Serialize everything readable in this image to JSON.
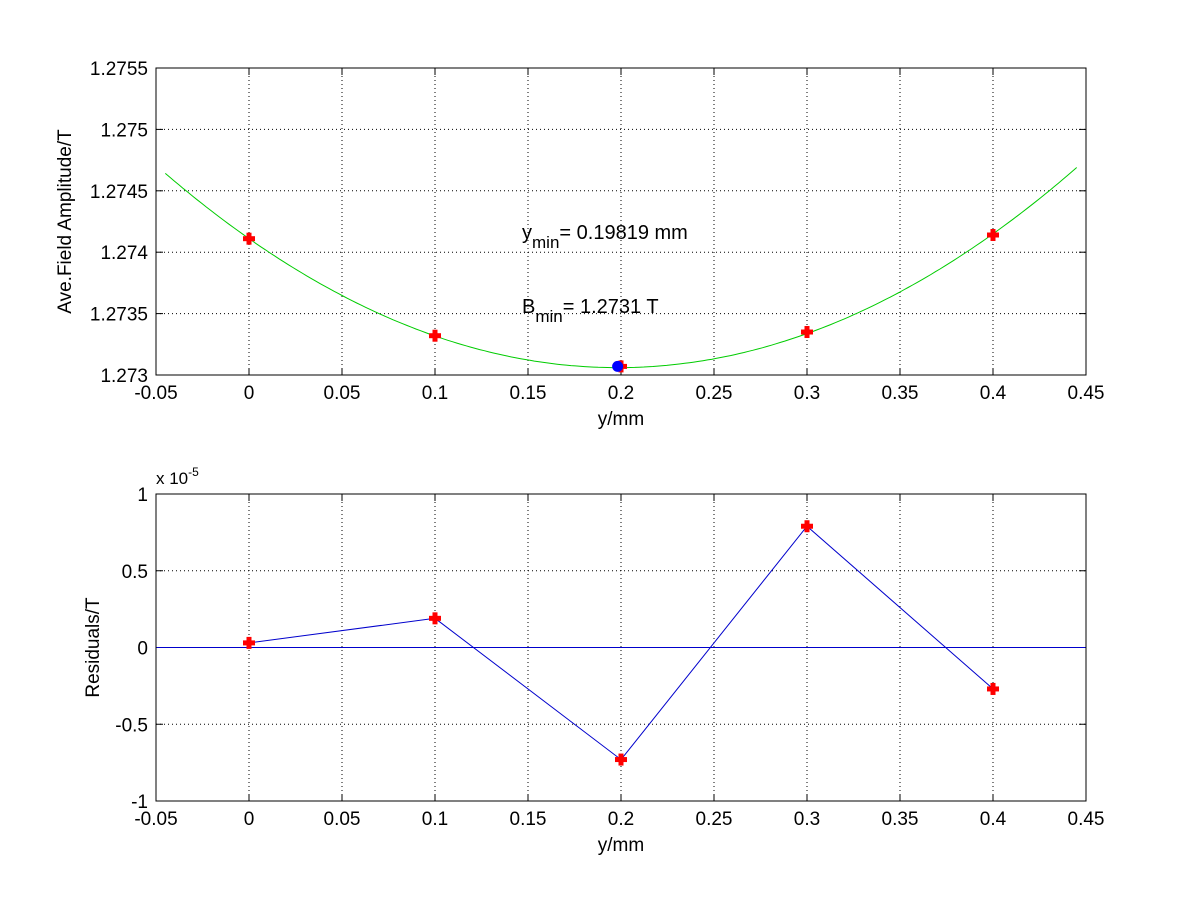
{
  "chart_data": [
    {
      "type": "line",
      "title": "",
      "xlabel": "y/mm",
      "ylabel": "Ave.Field Amplitude/T",
      "xlim": [
        -0.05,
        0.45
      ],
      "ylim": [
        1.273,
        1.2755
      ],
      "xticks": [
        "-0.05",
        "0",
        "0.05",
        "0.1",
        "0.15",
        "0.2",
        "0.25",
        "0.3",
        "0.35",
        "0.4",
        "0.45"
      ],
      "yticks": [
        "1.273",
        "1.2735",
        "1.274",
        "1.2745",
        "1.275",
        "1.2755"
      ],
      "grid": true,
      "series": [
        {
          "name": "measured",
          "style": "red plus markers",
          "color": "#ff0000",
          "x": [
            0,
            0.1,
            0.2,
            0.3,
            0.4
          ],
          "y": [
            1.27411,
            1.27332,
            1.27307,
            1.27335,
            1.27414
          ]
        },
        {
          "name": "quadratic fit",
          "style": "line",
          "color": "#00cc00",
          "vertex_x": 0.19819,
          "vertex_y": 1.27306,
          "curvature": 0.02675,
          "x_range": [
            -0.045,
            0.445
          ]
        },
        {
          "name": "minimum",
          "style": "blue marker",
          "color": "#0000ff",
          "x": [
            0.19819
          ],
          "y": [
            1.27307
          ]
        }
      ],
      "annotations": [
        {
          "main": "y",
          "sub": "min",
          "rest": "= 0.19819 mm"
        },
        {
          "main": "B",
          "sub": "min",
          "rest": "= 1.2731 T"
        }
      ]
    },
    {
      "type": "line",
      "title": "",
      "xlabel": "y/mm",
      "ylabel": "Residuals/T",
      "exponent_label": "x 10",
      "exponent": "-5",
      "xlim": [
        -0.05,
        0.45
      ],
      "ylim": [
        -1,
        1
      ],
      "xticks": [
        "-0.05",
        "0",
        "0.05",
        "0.1",
        "0.15",
        "0.2",
        "0.25",
        "0.3",
        "0.35",
        "0.4",
        "0.45"
      ],
      "yticks": [
        "-1",
        "-0.5",
        "0",
        "0.5",
        "1"
      ],
      "grid": true,
      "series": [
        {
          "name": "residuals",
          "style": "blue line with red plus markers",
          "color": "#0000cc",
          "marker_color": "#ff0000",
          "x": [
            0,
            0.1,
            0.2,
            0.3,
            0.4
          ],
          "y": [
            0.03,
            0.19,
            -0.73,
            0.79,
            -0.27
          ]
        },
        {
          "name": "zero line",
          "style": "line",
          "color": "#0000cc",
          "y": 0
        }
      ]
    }
  ]
}
